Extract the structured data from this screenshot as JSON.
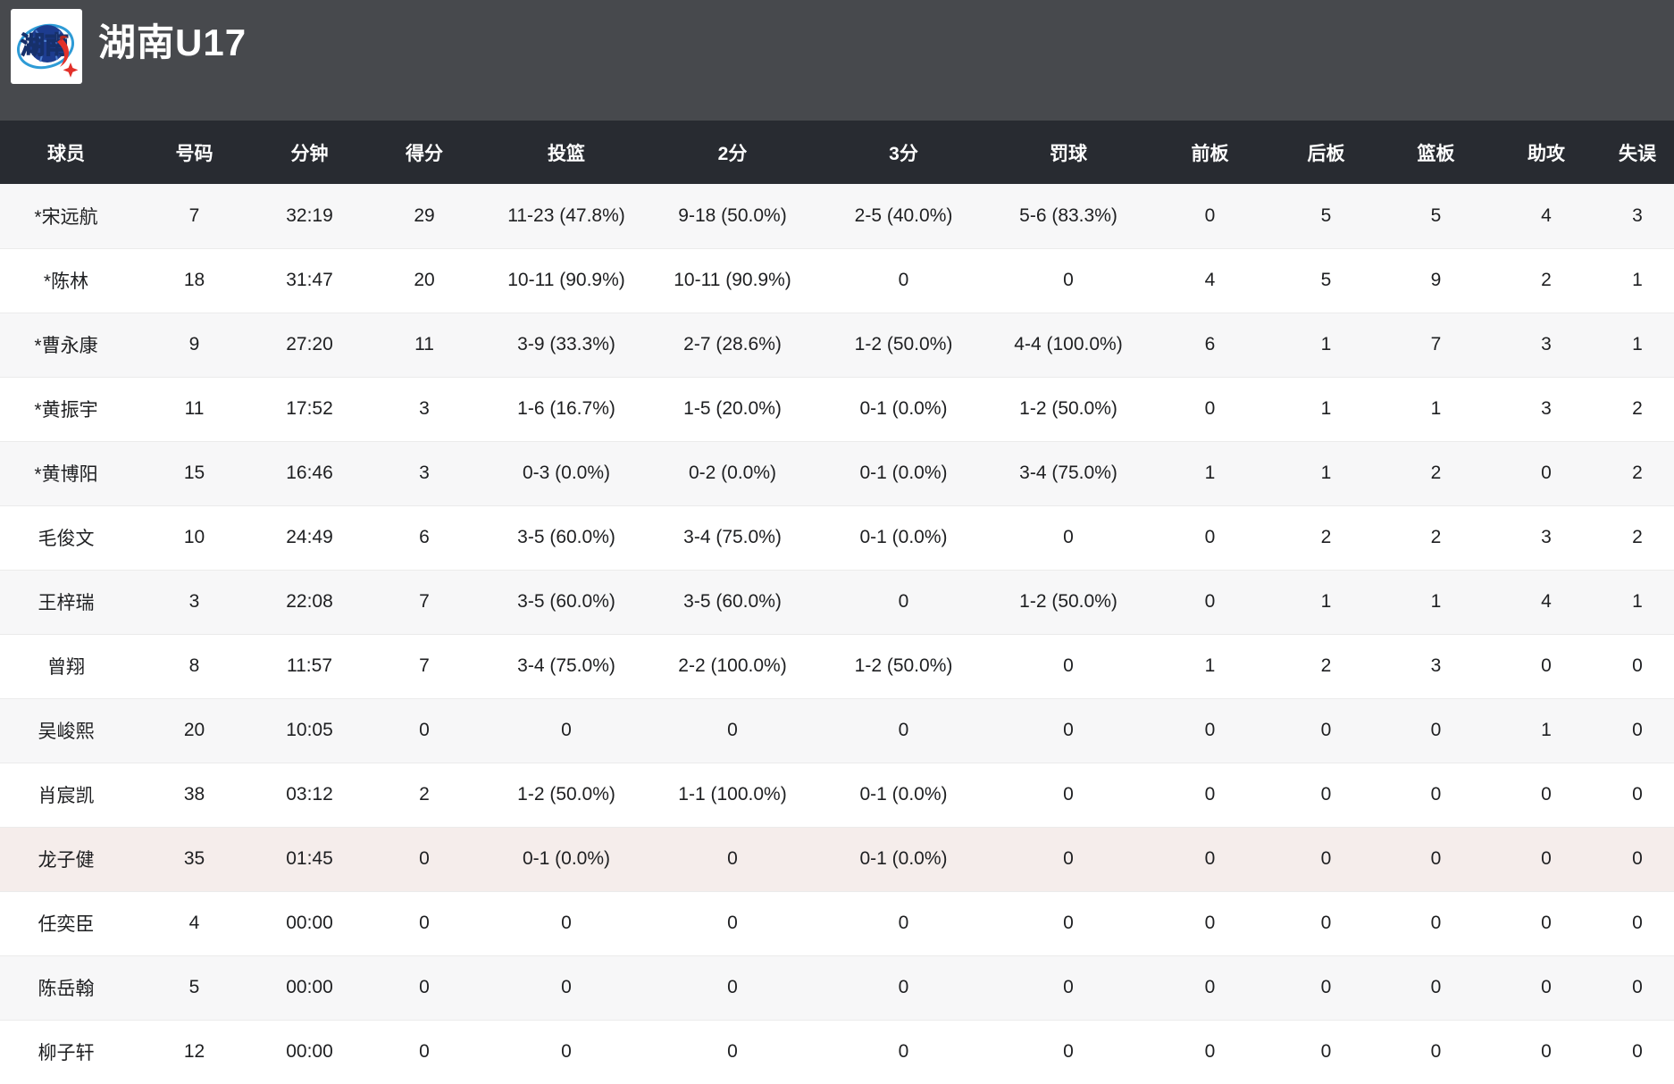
{
  "header": {
    "team_name": "湖南U17",
    "logo_text": "湖南"
  },
  "colors": {
    "topbar_bg": "#47494d",
    "table_header_bg": "#282b31",
    "stripe_row_bg": "#f7f7f8",
    "highlight_row_bg": "#f5edeb",
    "logo_navy": "#1d3c8f",
    "logo_red": "#e2302a",
    "logo_lightblue": "#2e9bd6"
  },
  "table": {
    "columns": [
      {
        "id": "player",
        "label": "球员"
      },
      {
        "id": "number",
        "label": "号码"
      },
      {
        "id": "minutes",
        "label": "分钟"
      },
      {
        "id": "points",
        "label": "得分"
      },
      {
        "id": "fg",
        "label": "投篮"
      },
      {
        "id": "two_pt",
        "label": "2分"
      },
      {
        "id": "three_pt",
        "label": "3分"
      },
      {
        "id": "ft",
        "label": "罚球"
      },
      {
        "id": "oreb",
        "label": "前板"
      },
      {
        "id": "dreb",
        "label": "后板"
      },
      {
        "id": "reb",
        "label": "篮板"
      },
      {
        "id": "ast",
        "label": "助攻"
      },
      {
        "id": "tov",
        "label": "失误"
      }
    ],
    "rows": [
      {
        "highlighted": false,
        "cells": [
          "*宋远航",
          "7",
          "32:19",
          "29",
          "11-23 (47.8%)",
          "9-18 (50.0%)",
          "2-5 (40.0%)",
          "5-6 (83.3%)",
          "0",
          "5",
          "5",
          "4",
          "3"
        ]
      },
      {
        "highlighted": false,
        "cells": [
          "*陈林",
          "18",
          "31:47",
          "20",
          "10-11 (90.9%)",
          "10-11 (90.9%)",
          "0",
          "0",
          "4",
          "5",
          "9",
          "2",
          "1"
        ]
      },
      {
        "highlighted": false,
        "cells": [
          "*曹永康",
          "9",
          "27:20",
          "11",
          "3-9 (33.3%)",
          "2-7 (28.6%)",
          "1-2 (50.0%)",
          "4-4 (100.0%)",
          "6",
          "1",
          "7",
          "3",
          "1"
        ]
      },
      {
        "highlighted": false,
        "cells": [
          "*黄振宇",
          "11",
          "17:52",
          "3",
          "1-6 (16.7%)",
          "1-5 (20.0%)",
          "0-1 (0.0%)",
          "1-2 (50.0%)",
          "0",
          "1",
          "1",
          "3",
          "2"
        ]
      },
      {
        "highlighted": false,
        "cells": [
          "*黄博阳",
          "15",
          "16:46",
          "3",
          "0-3 (0.0%)",
          "0-2 (0.0%)",
          "0-1 (0.0%)",
          "3-4 (75.0%)",
          "1",
          "1",
          "2",
          "0",
          "2"
        ]
      },
      {
        "highlighted": false,
        "cells": [
          "毛俊文",
          "10",
          "24:49",
          "6",
          "3-5 (60.0%)",
          "3-4 (75.0%)",
          "0-1 (0.0%)",
          "0",
          "0",
          "2",
          "2",
          "3",
          "2"
        ]
      },
      {
        "highlighted": false,
        "cells": [
          "王梓瑞",
          "3",
          "22:08",
          "7",
          "3-5 (60.0%)",
          "3-5 (60.0%)",
          "0",
          "1-2 (50.0%)",
          "0",
          "1",
          "1",
          "4",
          "1"
        ]
      },
      {
        "highlighted": false,
        "cells": [
          "曾翔",
          "8",
          "11:57",
          "7",
          "3-4 (75.0%)",
          "2-2 (100.0%)",
          "1-2 (50.0%)",
          "0",
          "1",
          "2",
          "3",
          "0",
          "0"
        ]
      },
      {
        "highlighted": false,
        "cells": [
          "吴峻熙",
          "20",
          "10:05",
          "0",
          "0",
          "0",
          "0",
          "0",
          "0",
          "0",
          "0",
          "1",
          "0"
        ]
      },
      {
        "highlighted": false,
        "cells": [
          "肖宸凯",
          "38",
          "03:12",
          "2",
          "1-2 (50.0%)",
          "1-1 (100.0%)",
          "0-1 (0.0%)",
          "0",
          "0",
          "0",
          "0",
          "0",
          "0"
        ]
      },
      {
        "highlighted": true,
        "cells": [
          "龙子健",
          "35",
          "01:45",
          "0",
          "0-1 (0.0%)",
          "0",
          "0-1 (0.0%)",
          "0",
          "0",
          "0",
          "0",
          "0",
          "0"
        ]
      },
      {
        "highlighted": false,
        "cells": [
          "任奕臣",
          "4",
          "00:00",
          "0",
          "0",
          "0",
          "0",
          "0",
          "0",
          "0",
          "0",
          "0",
          "0"
        ]
      },
      {
        "highlighted": false,
        "cells": [
          "陈岳翰",
          "5",
          "00:00",
          "0",
          "0",
          "0",
          "0",
          "0",
          "0",
          "0",
          "0",
          "0",
          "0"
        ]
      },
      {
        "highlighted": false,
        "cells": [
          "柳子轩",
          "12",
          "00:00",
          "0",
          "0",
          "0",
          "0",
          "0",
          "0",
          "0",
          "0",
          "0",
          "0"
        ]
      }
    ]
  }
}
